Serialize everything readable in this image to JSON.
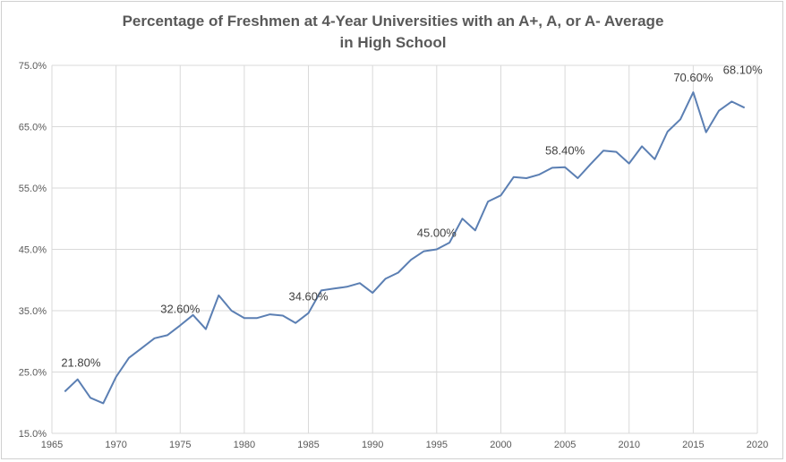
{
  "chart_data": {
    "type": "line",
    "title_line1": "Percentage of Freshmen at 4-Year Universities with an A+, A, or A- Average",
    "title_line2": "in High School",
    "xlabel": "",
    "ylabel": "",
    "xlim": [
      1965,
      2020
    ],
    "ylim": [
      15,
      75
    ],
    "x_ticks": [
      "1965",
      "1970",
      "1975",
      "1980",
      "1985",
      "1990",
      "1995",
      "2000",
      "2005",
      "2010",
      "2015",
      "2020"
    ],
    "y_ticks": [
      "15.0%",
      "25.0%",
      "35.0%",
      "45.0%",
      "55.0%",
      "65.0%",
      "75.0%"
    ],
    "grid": true,
    "line_color": "#5B7FB3",
    "series": [
      {
        "x": [
          1966,
          1967,
          1968,
          1969,
          1970,
          1971,
          1972,
          1973,
          1974,
          1975,
          1976,
          1977,
          1978,
          1979,
          1980,
          1981,
          1982,
          1983,
          1984,
          1985,
          1986,
          1987,
          1988,
          1989,
          1990,
          1991,
          1992,
          1993,
          1994,
          1995,
          1996,
          1997,
          1998,
          1999,
          2000,
          2001,
          2002,
          2003,
          2004,
          2005,
          2006,
          2007,
          2008,
          2009,
          2010,
          2011,
          2012,
          2013,
          2014,
          2015,
          2016,
          2017,
          2018,
          2019
        ],
        "values": [
          21.8,
          23.8,
          20.8,
          19.9,
          24.2,
          27.3,
          28.9,
          30.5,
          31.0,
          32.6,
          34.3,
          32.0,
          37.5,
          35.0,
          33.8,
          33.8,
          34.4,
          34.2,
          33.0,
          34.6,
          38.3,
          38.6,
          38.9,
          39.5,
          37.9,
          40.2,
          41.2,
          43.3,
          44.7,
          45.0,
          46.1,
          50.0,
          48.1,
          52.8,
          53.8,
          56.8,
          56.6,
          57.2,
          58.3,
          58.4,
          56.6,
          58.9,
          61.1,
          60.9,
          59.0,
          61.8,
          59.7,
          64.2,
          66.2,
          70.6,
          64.1,
          67.6,
          69.1,
          68.1
        ]
      }
    ],
    "annotations": [
      {
        "x": 1966,
        "y": 21.8,
        "text": "21.80%"
      },
      {
        "x": 1975,
        "y": 32.6,
        "text": "32.60%"
      },
      {
        "x": 1985,
        "y": 34.6,
        "text": "34.60%"
      },
      {
        "x": 1995,
        "y": 45.0,
        "text": "45.00%"
      },
      {
        "x": 2005,
        "y": 58.4,
        "text": "58.40%"
      },
      {
        "x": 2015,
        "y": 70.6,
        "text": "70.60%"
      },
      {
        "x": 2019,
        "y": 68.1,
        "text": "68.10%"
      }
    ]
  }
}
